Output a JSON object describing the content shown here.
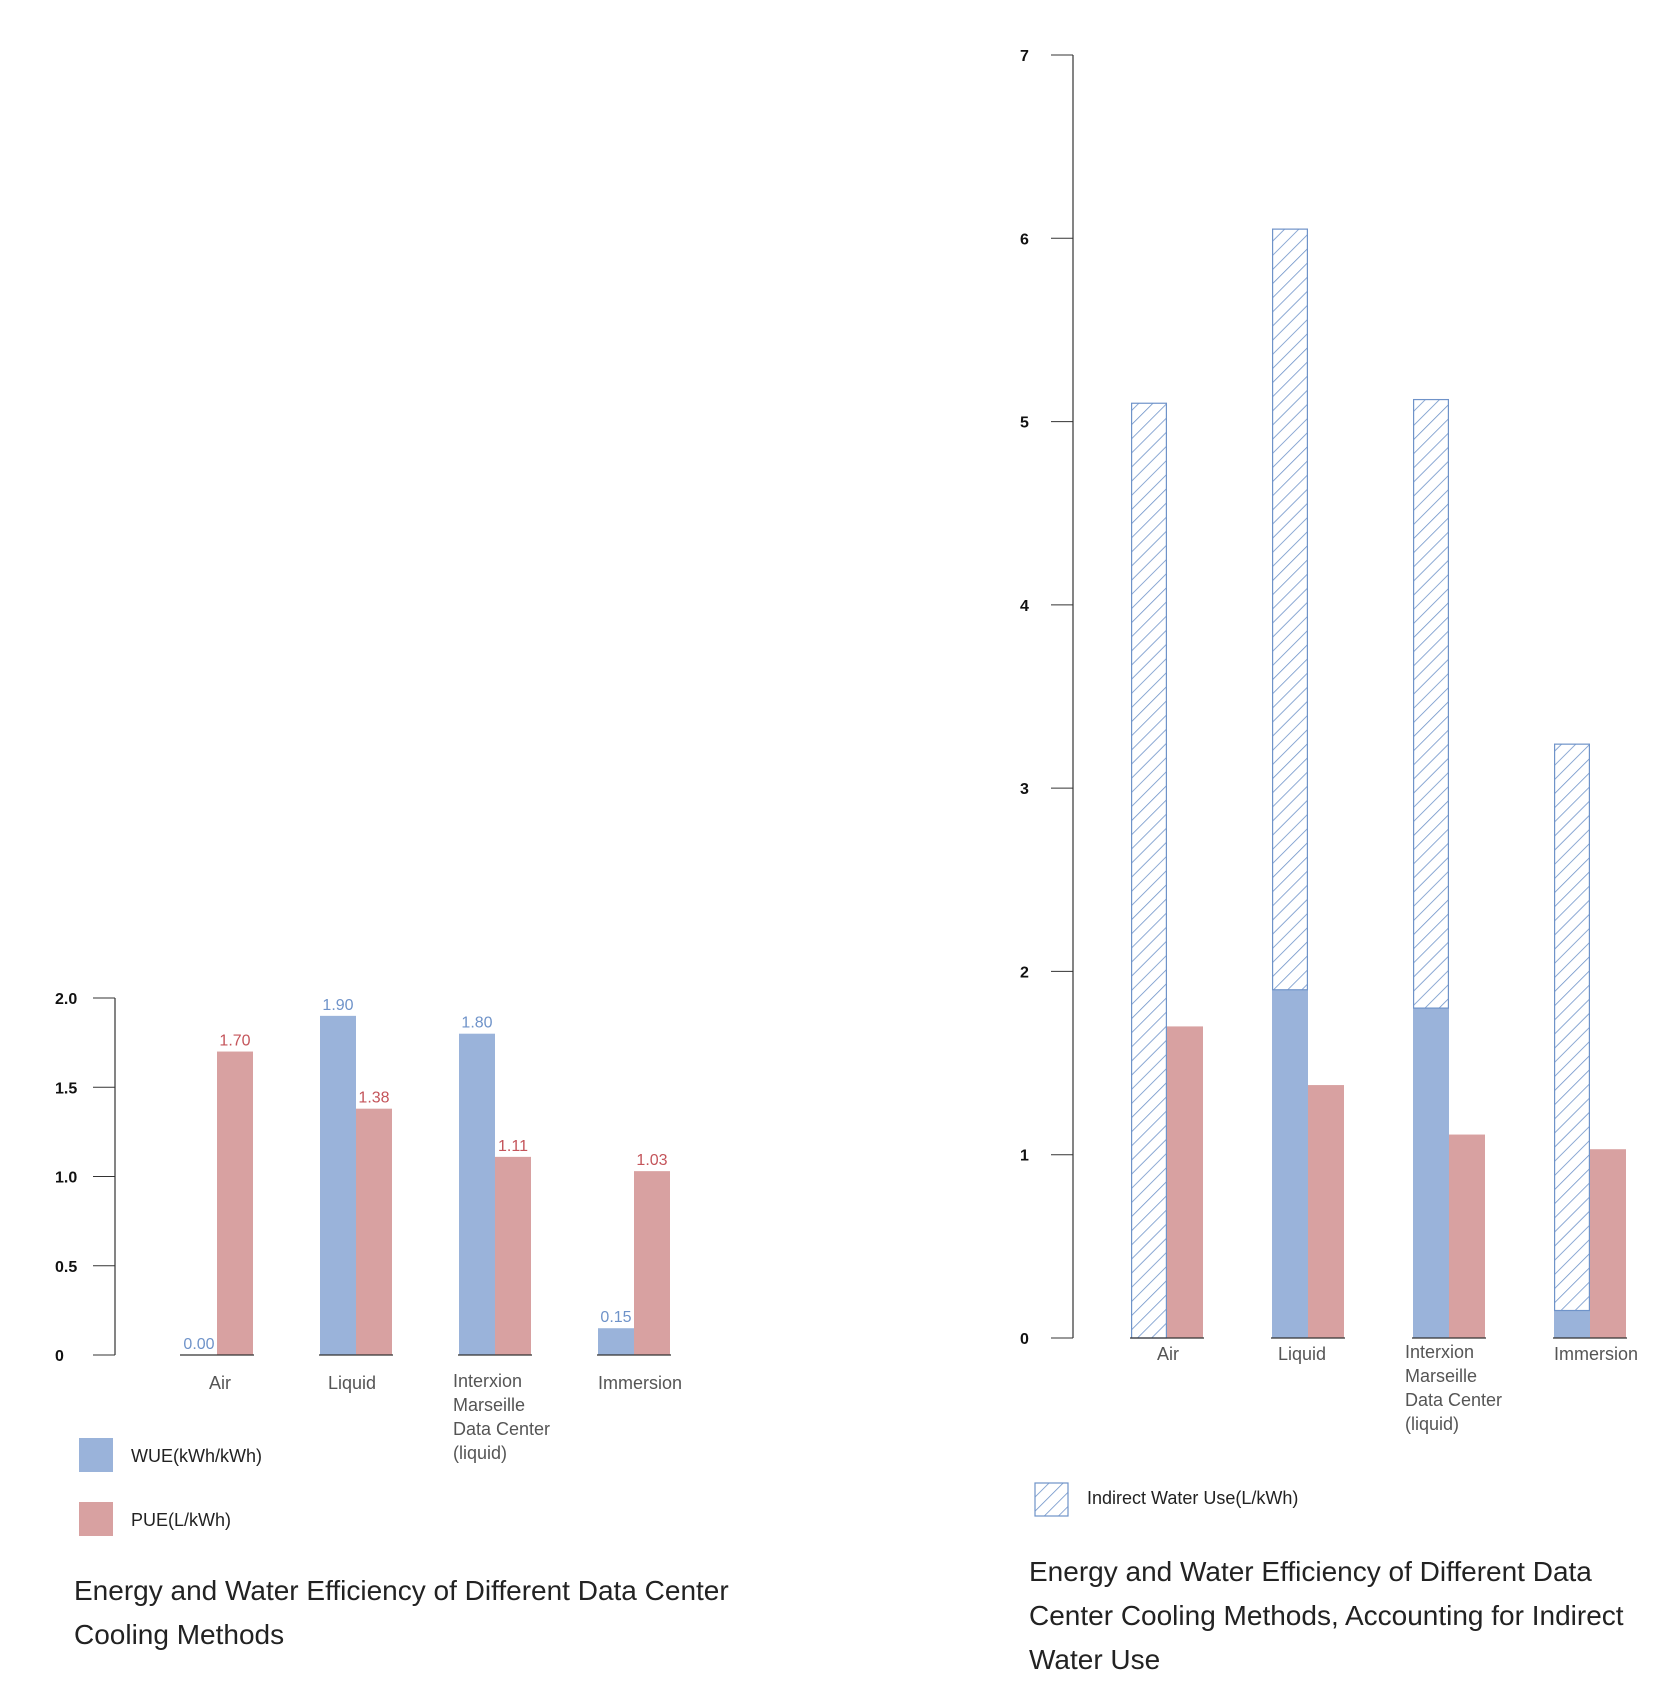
{
  "chart_data": [
    {
      "id": "left",
      "type": "bar",
      "title_lines": [
        "Energy and Water Efficiency of Different Data Center",
        "Cooling Methods"
      ],
      "categories": [
        [
          "Air"
        ],
        [
          "Liquid"
        ],
        [
          "Interxion",
          "Marseille",
          "Data Center",
          "(liquid)"
        ],
        [
          "Immersion"
        ]
      ],
      "series": [
        {
          "name": "WUE(kWh/kWh)",
          "values": [
            0.0,
            1.9,
            1.8,
            0.15
          ],
          "labels": [
            "0.00",
            "1.90",
            "1.80",
            "0.15"
          ],
          "color": "#9ab3da",
          "label_color": "#6f93c9"
        },
        {
          "name": "PUE(L/kWh)",
          "values": [
            1.7,
            1.38,
            1.11,
            1.03
          ],
          "labels": [
            "1.70",
            "1.38",
            "1.11",
            "1.03"
          ],
          "color": "#d8a1a1",
          "label_color": "#c4545a"
        }
      ],
      "yticks": [
        "0",
        "0.5",
        "1.0",
        "1.5",
        "2.0"
      ],
      "ytick_values": [
        0,
        0.5,
        1.0,
        1.5,
        2.0
      ],
      "ylim": [
        0,
        2.0
      ],
      "legend_position": "bottom-left"
    },
    {
      "id": "right",
      "type": "bar",
      "title_lines": [
        "Energy and Water Efficiency of Different Data",
        "Center Cooling Methods, Accounting for Indirect",
        "Water Use"
      ],
      "categories": [
        [
          "Air"
        ],
        [
          "Liquid"
        ],
        [
          "Interxion",
          "Marseille",
          "Data Center",
          "(liquid)"
        ],
        [
          "Immersion"
        ]
      ],
      "series": [
        {
          "name": "WUE",
          "values": [
            0.0,
            1.9,
            1.8,
            0.15
          ],
          "color": "#9ab3da"
        },
        {
          "name": "Indirect Water Use(L/kWh)",
          "values": [
            5.1,
            4.15,
            3.32,
            3.09
          ],
          "color": "#6f93c9",
          "stacked_on": "WUE",
          "pattern": "hatch"
        },
        {
          "name": "PUE",
          "values": [
            1.7,
            1.38,
            1.11,
            1.03
          ],
          "color": "#d8a1a1"
        }
      ],
      "yticks": [
        "0",
        "1",
        "2",
        "3",
        "4",
        "5",
        "6",
        "7"
      ],
      "ytick_values": [
        0,
        1,
        2,
        3,
        4,
        5,
        6,
        7
      ],
      "ylim": [
        0,
        7
      ],
      "legend_label": "Indirect Water Use(L/kWh)",
      "legend_position": "bottom-left"
    }
  ]
}
